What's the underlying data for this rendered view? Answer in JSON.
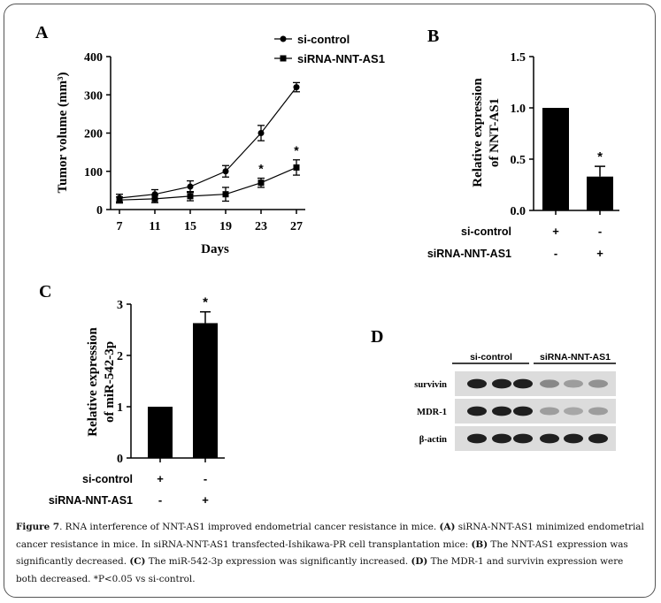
{
  "panel_labels": {
    "A": "A",
    "B": "B",
    "C": "C",
    "D": "D"
  },
  "chart_data": [
    {
      "panel": "A",
      "type": "line",
      "xlabel": "Days",
      "ylabel": "Tumor volume (mm³)",
      "x": [
        7,
        11,
        15,
        19,
        23,
        27
      ],
      "xticks": [
        "7",
        "11",
        "15",
        "19",
        "23",
        "27"
      ],
      "ylim": [
        0,
        400
      ],
      "yticks": [
        "0",
        "100",
        "200",
        "300",
        "400"
      ],
      "series": [
        {
          "name": "si-control",
          "marker": "circle",
          "values": [
            30,
            40,
            60,
            100,
            200,
            320
          ],
          "errors": [
            10,
            12,
            15,
            15,
            20,
            12
          ]
        },
        {
          "name": "siRNA-NNT-AS1",
          "marker": "square",
          "values": [
            25,
            28,
            35,
            40,
            70,
            110
          ],
          "errors": [
            8,
            10,
            12,
            18,
            12,
            20
          ]
        }
      ],
      "annotations": [
        {
          "x": 23,
          "text": "*"
        },
        {
          "x": 27,
          "text": "*"
        }
      ]
    },
    {
      "panel": "B",
      "type": "bar",
      "ylabel": "Relative expression of NNT-AS1",
      "ylim": [
        0,
        1.5
      ],
      "yticks": [
        "0.0",
        "0.5",
        "1.0",
        "1.5"
      ],
      "categories": [
        "si-control",
        "siRNA-NNT-AS1"
      ],
      "values": [
        1.0,
        0.33
      ],
      "errors": [
        0,
        0.1
      ],
      "annotations": [
        "",
        "*"
      ],
      "condition_table": {
        "rows": [
          {
            "label": "si-control",
            "cells": [
              "+",
              "-"
            ]
          },
          {
            "label": "siRNA-NNT-AS1",
            "cells": [
              "-",
              "+"
            ]
          }
        ]
      }
    },
    {
      "panel": "C",
      "type": "bar",
      "ylabel": "Relative expression of miR-542-3p",
      "ylim": [
        0,
        3
      ],
      "yticks": [
        "0",
        "1",
        "2",
        "3"
      ],
      "categories": [
        "si-control",
        "siRNA-NNT-AS1"
      ],
      "values": [
        1.0,
        2.63
      ],
      "errors": [
        0,
        0.22
      ],
      "annotations": [
        "",
        "*"
      ],
      "condition_table": {
        "rows": [
          {
            "label": "si-control",
            "cells": [
              "+",
              "-"
            ]
          },
          {
            "label": "siRNA-NNT-AS1",
            "cells": [
              "-",
              "+"
            ]
          }
        ]
      }
    }
  ],
  "blot": {
    "group_labels": [
      "si-control",
      "siRNA-NNT-AS1"
    ],
    "rows": [
      {
        "label": "survivin",
        "intensities": [
          0.95,
          0.95,
          0.95,
          0.45,
          0.35,
          0.4
        ]
      },
      {
        "label": "MDR-1",
        "intensities": [
          0.95,
          0.95,
          0.95,
          0.35,
          0.3,
          0.35
        ]
      },
      {
        "label": "β-actin",
        "intensities": [
          0.95,
          0.95,
          0.95,
          0.95,
          0.95,
          0.95
        ]
      }
    ]
  },
  "caption": {
    "fig": "Figure 7",
    "intro": ". RNA interference of NNT-AS1 improved endometrial cancer resistance in mice. ",
    "a_tag": "(A)",
    "a_text": " siRNA-NNT-AS1 minimized endometrial cancer resistance in mice. In siRNA-NNT-AS1 transfected-Ishikawa-PR cell transplantation mice: ",
    "b_tag": "(B)",
    "b_text": " The NNT-AS1 expression was significantly decreased. ",
    "c_tag": "(C)",
    "c_text": " The miR-542-3p expression was significantly increased. ",
    "d_tag": "(D)",
    "d_text": " The MDR-1 and survivin expression were both decreased. *P<0.05 vs si-control."
  }
}
